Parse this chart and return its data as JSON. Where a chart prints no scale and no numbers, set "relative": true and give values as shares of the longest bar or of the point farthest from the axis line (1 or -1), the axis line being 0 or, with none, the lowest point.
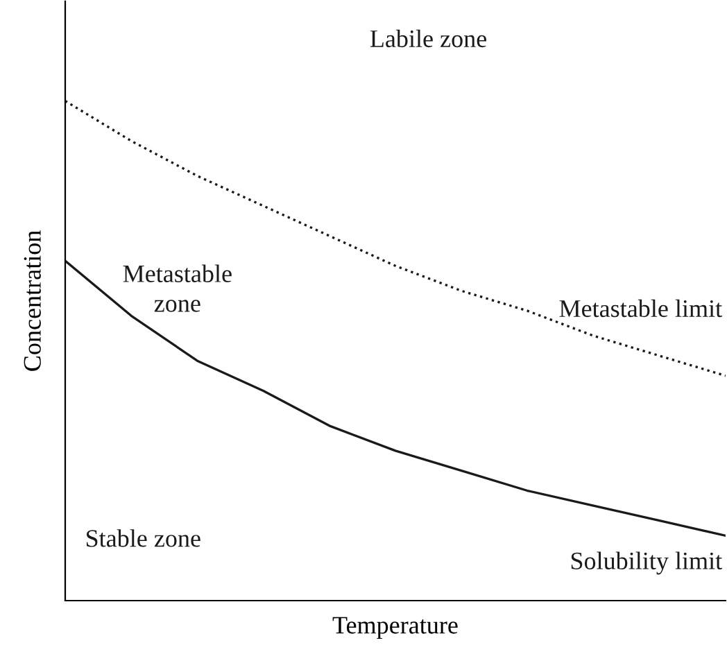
{
  "chart_data": {
    "type": "line",
    "relative": true,
    "xlabel": "Temperature",
    "ylabel": "Concentration",
    "categories": [
      null,
      null,
      null,
      null,
      null,
      null,
      null,
      null,
      null,
      null,
      null
    ],
    "series": [
      {
        "name": "Metastable limit",
        "color": "#1a1a1a",
        "line_style": "dotted",
        "values": [
          1,
          0.92,
          0.85,
          0.79,
          0.73,
          0.67,
          0.62,
          0.58,
          0.53,
          0.49,
          0.45
        ]
      },
      {
        "name": "Solubility limit",
        "color": "#1a1a1a",
        "line_style": "solid",
        "values": [
          0.68,
          0.57,
          0.48,
          0.42,
          0.35,
          0.3,
          0.26,
          0.22,
          0.19,
          0.16,
          0.13
        ]
      }
    ],
    "annotations": [
      "Labile zone",
      "Metastable\nzone",
      "Stable zone"
    ],
    "legend": false,
    "marker": "none"
  }
}
